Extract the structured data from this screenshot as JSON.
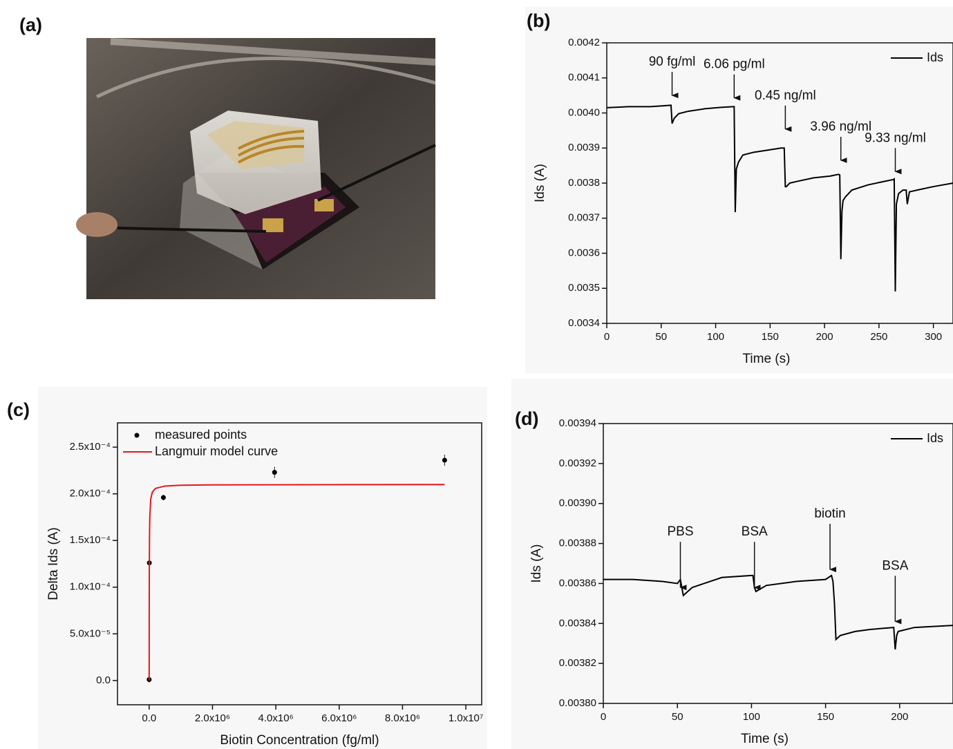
{
  "chart_data": [
    {
      "type": "image",
      "label": "(a)"
    },
    {
      "type": "line",
      "label": "(b)",
      "xlabel": "Time (s)",
      "ylabel": "Ids (A)",
      "xlim": [
        0,
        318
      ],
      "xticks": [
        0,
        50,
        100,
        150,
        200,
        250,
        300
      ],
      "ylim": [
        0.0034,
        0.0042
      ],
      "yticks": [
        0.0034,
        0.0035,
        0.0036,
        0.0037,
        0.0038,
        0.0039,
        {
          "value": 0.004,
          "label": "0.0040"
        },
        0.0041,
        0.0042
      ],
      "legend": "upper right",
      "x": [
        0,
        20,
        40,
        59,
        60,
        62,
        66,
        75,
        90,
        105,
        116,
        117,
        118,
        119,
        121,
        125,
        135,
        150,
        160,
        163,
        164,
        165,
        168,
        175,
        190,
        205,
        213,
        214,
        215,
        216,
        217,
        219,
        225,
        240,
        255,
        263,
        264,
        265,
        266,
        268,
        272,
        275,
        276,
        278,
        285,
        300,
        318
      ],
      "series": [
        {
          "name": "Ids",
          "color": "#000000",
          "values": [
            0.004015,
            0.004018,
            0.004018,
            0.004022,
            0.00397,
            0.003985,
            0.003998,
            0.004005,
            0.004012,
            0.004016,
            0.004018,
            0.004018,
            0.003717,
            0.00384,
            0.00386,
            0.00388,
            0.003888,
            0.003895,
            0.0039,
            0.0039,
            0.00379,
            0.00379,
            0.0038,
            0.003805,
            0.003815,
            0.00382,
            0.003825,
            0.003823,
            0.003583,
            0.00372,
            0.00375,
            0.00376,
            0.00378,
            0.003795,
            0.003805,
            0.00381,
            0.003812,
            0.003491,
            0.00374,
            0.00377,
            0.00378,
            0.00378,
            0.00374,
            0.003775,
            0.00378,
            0.00379,
            0.0038
          ]
        }
      ],
      "annotations": [
        {
          "text": "90 fg/ml",
          "x": 60,
          "y": 0.00405
        },
        {
          "text": "6.06 pg/ml",
          "x": 117,
          "y": 0.004043
        },
        {
          "text": "0.45 ng/ml",
          "x": 164,
          "y": 0.003954
        },
        {
          "text": "3.96 ng/ml",
          "x": 215,
          "y": 0.003865
        },
        {
          "text": "9.33 ng/ml",
          "x": 265,
          "y": 0.003833
        }
      ]
    },
    {
      "type": "scatter",
      "label": "(c)",
      "xlabel": "Biotin Concentration (fg/ml)",
      "ylabel": "Delta Ids (A)",
      "xlim": [
        -1000000,
        10500000
      ],
      "xticks": [
        {
          "value": 0,
          "label": "0.0"
        },
        {
          "value": 2000000,
          "label": "2.0x10⁶"
        },
        {
          "value": 4000000,
          "label": "4.0x10⁶"
        },
        {
          "value": 6000000,
          "label": "6.0x10⁶"
        },
        {
          "value": 8000000,
          "label": "8.0x10⁶"
        },
        {
          "value": 10000000,
          "label": "1.0x10⁷"
        }
      ],
      "ylim": [
        -2.6e-05,
        0.000276
      ],
      "yticks": [
        {
          "value": 0,
          "label": "0.0"
        },
        {
          "value": 5e-05,
          "label": "5.0x10⁻⁵"
        },
        {
          "value": 0.0001,
          "label": "1.0x10⁻⁴"
        },
        {
          "value": 0.00015,
          "label": "1.5x10⁻⁴"
        },
        {
          "value": 0.0002,
          "label": "2.0x10⁻⁴"
        },
        {
          "value": 0.00025,
          "label": "2.5x10⁻⁴"
        }
      ],
      "legend": "upper left",
      "series": [
        {
          "name": "measured points",
          "type": "scatter",
          "color": "#000000",
          "x": [
            90,
            6060,
            450000,
            3960000,
            9330000
          ],
          "values": [
            1e-06,
            0.000126,
            0.000196,
            0.000223,
            0.000236
          ],
          "errors": [
            3e-06,
            3e-06,
            3e-06,
            6e-06,
            6e-06
          ]
        },
        {
          "name": "Langmuir model curve",
          "type": "line",
          "color": "#e8141b",
          "x": [
            0,
            2000,
            5000,
            10000,
            20000,
            50000,
            100000,
            200000,
            500000,
            1000000,
            2000000,
            5000000,
            9330000
          ],
          "values": [
            0,
            6.95e-05,
            0.0001161,
            0.0001496,
            0.0001747,
            0.0001943,
            0.0002018,
            0.0002058,
            0.0002083,
            0.0002092,
            0.0002096,
            0.0002098,
            0.0002099
          ]
        }
      ]
    },
    {
      "type": "line",
      "label": "(d)",
      "xlabel": "Time (s)",
      "ylabel": "Ids (A)",
      "xlim": [
        0,
        236
      ],
      "xticks": [
        0,
        50,
        100,
        150,
        200
      ],
      "ylim": [
        0.0038,
        0.00394
      ],
      "yticks": [
        {
          "value": 0.0038,
          "label": "0.00380"
        },
        0.00382,
        0.00384,
        0.00386,
        0.00388,
        {
          "value": 0.0039,
          "label": "0.00390"
        },
        0.00392,
        0.00394
      ],
      "legend": "upper right",
      "x": [
        0,
        20,
        40,
        50,
        52,
        54,
        60,
        80,
        100,
        101,
        102,
        103,
        110,
        130,
        150,
        154,
        155,
        156,
        157,
        160,
        170,
        180,
        196,
        197,
        198,
        199,
        210,
        236
      ],
      "series": [
        {
          "name": "Ids",
          "color": "#000000",
          "values": [
            0.003862,
            0.003862,
            0.003861,
            0.00386,
            0.003862,
            0.003854,
            0.003858,
            0.003863,
            0.003864,
            0.003864,
            0.003858,
            0.003856,
            0.003859,
            0.003861,
            0.003862,
            0.003864,
            0.003861,
            0.00385,
            0.003832,
            0.003834,
            0.003836,
            0.003837,
            0.003838,
            0.003827,
            0.003834,
            0.003836,
            0.003838,
            0.003839
          ]
        }
      ],
      "annotations": [
        {
          "text": "PBS",
          "x": 52,
          "y": 0.003858
        },
        {
          "text": "BSA",
          "x": 102,
          "y": 0.003858
        },
        {
          "text": "biotin",
          "x": 153,
          "y": 0.003867
        },
        {
          "text": "BSA",
          "x": 197,
          "y": 0.003841
        }
      ]
    }
  ]
}
